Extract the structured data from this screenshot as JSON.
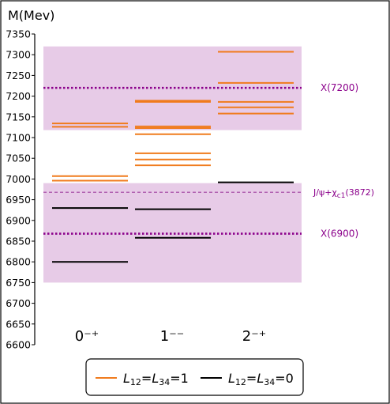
{
  "chart_data": {
    "type": "level-diagram",
    "ylabel": "M(Mev)",
    "ylim": [
      6600,
      7350
    ],
    "yticks": [
      6600,
      6650,
      6700,
      6750,
      6800,
      6850,
      6900,
      6950,
      7000,
      7050,
      7100,
      7150,
      7200,
      7250,
      7300,
      7350
    ],
    "categories": [
      "0⁻⁺",
      "1⁻⁻",
      "2⁻⁺"
    ],
    "bands": [
      {
        "from": 6750,
        "to": 6990,
        "color": "#e7cbe7"
      },
      {
        "from": 7118,
        "to": 7320,
        "color": "#e7cbe7"
      }
    ],
    "reference_lines": [
      {
        "label": "X(7200)",
        "value": 7220,
        "style": "dotted",
        "color": "#8b008b"
      },
      {
        "label": "J/ψ+χ",
        "label_sub": "c1",
        "label_suffix": "(3872)",
        "value": 6968,
        "style": "dashed",
        "color": "#a040a0"
      },
      {
        "label": "X(6900)",
        "value": 6868,
        "style": "dotted",
        "color": "#8b008b"
      }
    ],
    "series": [
      {
        "name": "L12=L34=1",
        "color": "#f07b1d",
        "levels": [
          [
            7007,
            6996,
            7134,
            7126
          ],
          [
            7033,
            7047,
            7062,
            7108,
            7123,
            7127,
            7186,
            7189
          ],
          [
            7158,
            7173,
            7186,
            7232,
            7307
          ]
        ]
      },
      {
        "name": "L12=L34=0",
        "color": "#000000",
        "levels": [
          [
            6800,
            6930
          ],
          [
            6858,
            6927
          ],
          [
            6992
          ]
        ]
      }
    ],
    "legend": {
      "placement": "bottom",
      "entries": [
        {
          "color": "#f07b1d",
          "label_l1": "L",
          "label_s1": "12",
          "label_eq": "=",
          "label_l2": "L",
          "label_s2": "34",
          "label_val": "=1"
        },
        {
          "color": "#000000",
          "label_l1": "L",
          "label_s1": "12",
          "label_eq": "=",
          "label_l2": "L",
          "label_s2": "34",
          "label_val": "=0"
        }
      ]
    }
  }
}
